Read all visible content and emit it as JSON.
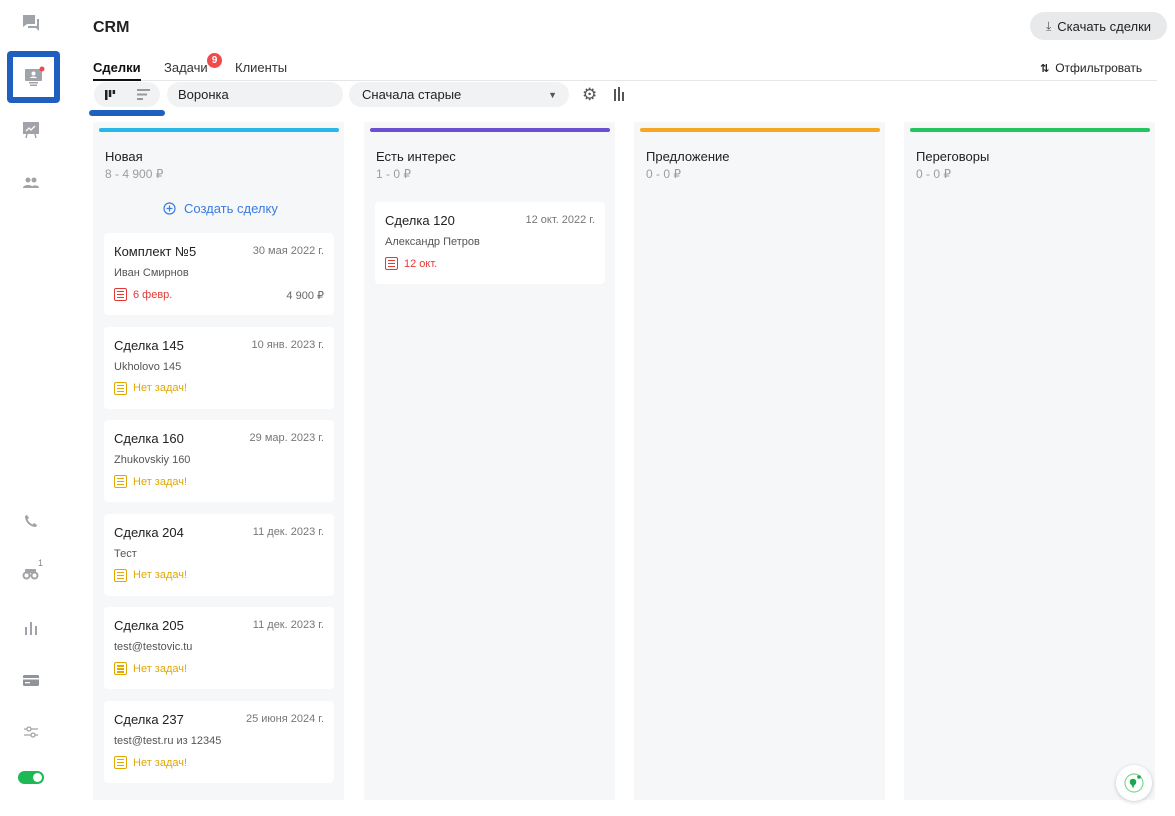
{
  "app": {
    "title": "CRM",
    "download_label": "Скачать сделки",
    "filter_label": "Отфильтровать"
  },
  "sidebar": {
    "items": [
      "chat-icon",
      "crm-icon",
      "presentation-icon",
      "users-icon",
      "phone-icon",
      "binoculars-icon",
      "chart-icon",
      "card-icon",
      "settings-sliders-icon",
      "toggle-icon"
    ],
    "binoculars_badge": "1",
    "toggle_on": true
  },
  "tabs": [
    {
      "label": "Сделки",
      "active": true
    },
    {
      "label": "Задачи",
      "badge": "9"
    },
    {
      "label": "Клиенты"
    }
  ],
  "toolbar": {
    "funnel": "Воронка",
    "sort": "Сначала старые"
  },
  "colors": {
    "accent": "#1f5fbf",
    "new": "#29b6e8",
    "interest": "#6a4fd0",
    "offer": "#f5a623",
    "negotiation": "#22c55e",
    "overdue": "#e53935",
    "no_task": "#e0a800"
  },
  "columns": [
    {
      "name": "Новая",
      "sum": "8 - 4 900 ₽",
      "color": "#29b6e8",
      "create_label": "Создать сделку",
      "cards": [
        {
          "title": "Комплект №5",
          "date": "30 мая 2022 г.",
          "client": "Иван Смирнов",
          "task": "6 февр.",
          "overdue": true,
          "amount": "4 900 ₽"
        },
        {
          "title": "Сделка 145",
          "date": "10 янв. 2023 г.",
          "client": "Ukholovo 145",
          "task": "Нет задач!"
        },
        {
          "title": "Сделка 160",
          "date": "29 мар. 2023 г.",
          "client": "Zhukovskiy 160",
          "task": "Нет задач!"
        },
        {
          "title": "Сделка 204",
          "date": "11 дек. 2023 г.",
          "client": "Тест",
          "task": "Нет задач!"
        },
        {
          "title": "Сделка 205",
          "date": "11 дек. 2023 г.",
          "client": "test@testovic.tu",
          "task": "Нет задач!"
        },
        {
          "title": "Сделка 237",
          "date": "25 июня 2024 г.",
          "client": "test@test.ru из 12345",
          "task": "Нет задач!"
        }
      ]
    },
    {
      "name": "Есть интерес",
      "sum": "1 - 0 ₽",
      "color": "#6a4fd0",
      "cards": [
        {
          "title": "Сделка 120",
          "date": "12 окт. 2022 г.",
          "client": "Александр Петров",
          "task": "12 окт.",
          "overdue": true
        }
      ]
    },
    {
      "name": "Предложение",
      "sum": "0 - 0 ₽",
      "color": "#f5a623",
      "cards": []
    },
    {
      "name": "Переговоры",
      "sum": "0 - 0 ₽",
      "color": "#22c55e",
      "cards": []
    }
  ]
}
